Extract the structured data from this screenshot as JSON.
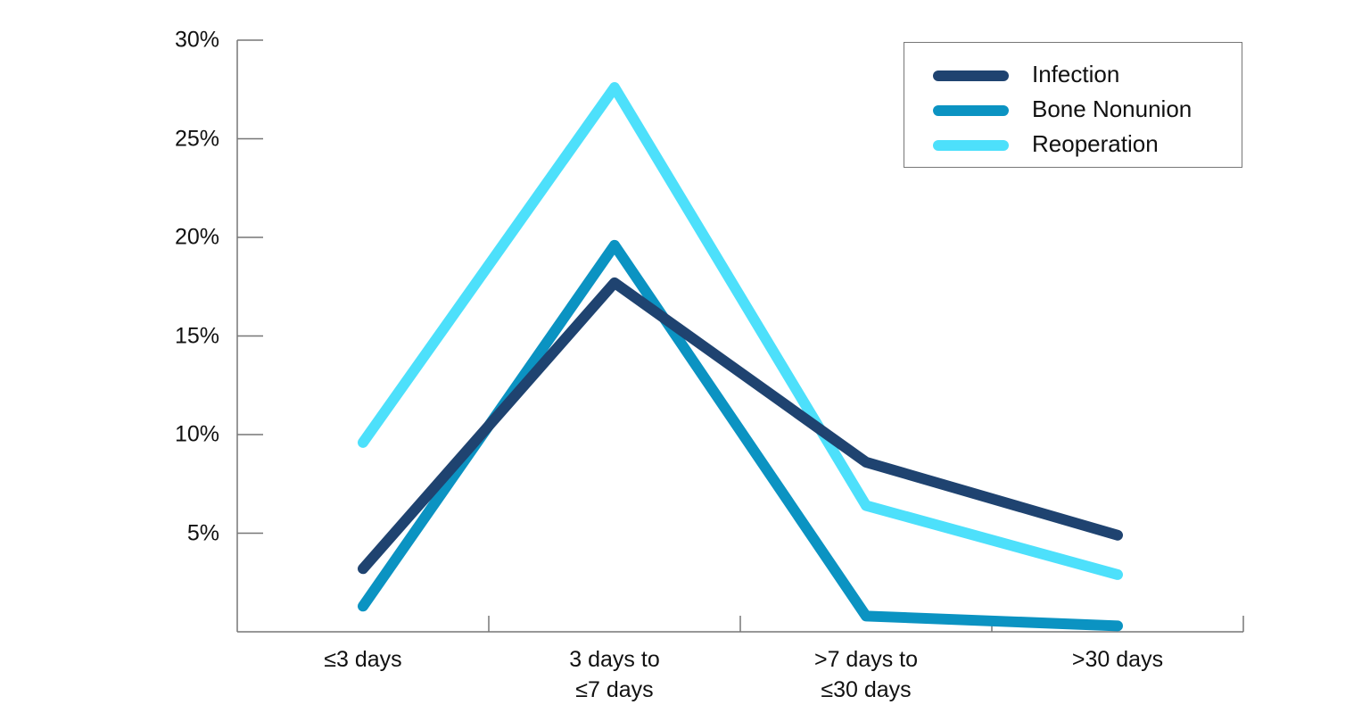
{
  "chart_data": {
    "type": "line",
    "title": "",
    "xlabel": "",
    "ylabel": "",
    "categories": [
      "≤3 days",
      "3 days to ≤7 days",
      ">7 days to ≤30 days",
      ">30 days"
    ],
    "category_lines": [
      [
        "≤3 days"
      ],
      [
        "3 days to",
        "≤7 days"
      ],
      [
        ">7 days to",
        "≤30 days"
      ],
      [
        ">30 days"
      ]
    ],
    "series": [
      {
        "name": "Infection",
        "color": "#1f4370",
        "values": [
          3.2,
          17.7,
          8.6,
          4.9
        ]
      },
      {
        "name": "Bone Nonunion",
        "color": "#0b93c2",
        "values": [
          1.3,
          19.6,
          0.8,
          0.3
        ]
      },
      {
        "name": "Reoperation",
        "color": "#4de0fb",
        "values": [
          9.6,
          27.6,
          6.4,
          2.9
        ]
      }
    ],
    "yticks": [
      "5%",
      "10%",
      "15%",
      "20%",
      "25%",
      "30%"
    ],
    "ytick_values": [
      5,
      10,
      15,
      20,
      25,
      30
    ],
    "ylim": [
      0,
      30
    ],
    "grid": false,
    "legend_position": "top-right",
    "units": "%"
  },
  "legend": {
    "items": [
      {
        "label": "Infection",
        "color": "#1f4370"
      },
      {
        "label": "Bone Nonunion",
        "color": "#0b93c2"
      },
      {
        "label": "Reoperation",
        "color": "#4de0fb"
      }
    ]
  },
  "axes": {
    "y_labels": [
      "30%",
      "25%",
      "20%",
      "15%",
      "10%",
      "5%"
    ],
    "x_labels": [
      "≤3 days",
      "3 days to ≤7 days",
      ">7 days to ≤30 days",
      ">30 days"
    ]
  }
}
